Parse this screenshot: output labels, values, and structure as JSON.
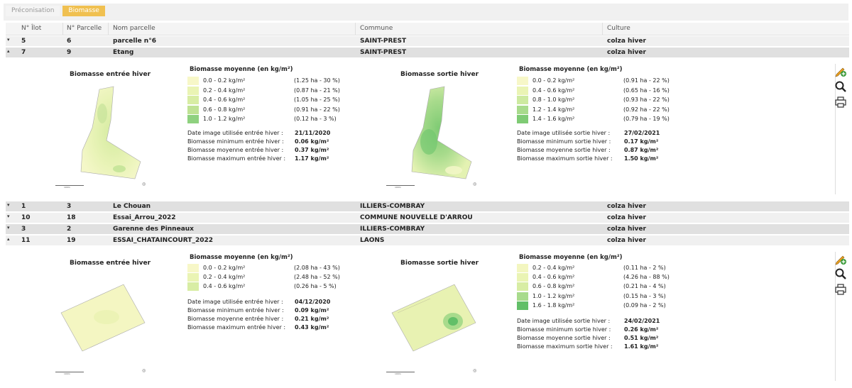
{
  "tabs": [
    {
      "label": "Préconisation"
    },
    {
      "label": "Biomasse"
    }
  ],
  "columns": {
    "ilot": "N° Îlot",
    "parcelle": "N° Parcelle",
    "nom": "Nom parcelle",
    "commune": "Commune",
    "culture": "Culture"
  },
  "rows": [
    {
      "ilot": "5",
      "parcelle": "6",
      "nom": "parcelle n°6",
      "commune": "SAINT-PREST",
      "culture": "colza hiver",
      "toggle": "▾"
    },
    {
      "ilot": "7",
      "parcelle": "9",
      "nom": "Etang",
      "commune": "SAINT-PREST",
      "culture": "colza hiver",
      "toggle": "▴"
    },
    {
      "ilot": "1",
      "parcelle": "3",
      "nom": "Le Chouan",
      "commune": "ILLIERS-COMBRAY",
      "culture": "colza hiver",
      "toggle": "▾"
    },
    {
      "ilot": "10",
      "parcelle": "18",
      "nom": "Essai_Arrou_2022",
      "commune": "COMMUNE NOUVELLE D'ARROU",
      "culture": "colza hiver",
      "toggle": "▾"
    },
    {
      "ilot": "3",
      "parcelle": "2",
      "nom": "Garenne des Pinneaux",
      "commune": "ILLIERS-COMBRAY",
      "culture": "colza hiver",
      "toggle": "▾"
    },
    {
      "ilot": "11",
      "parcelle": "19",
      "nom": "ESSAI_CHATAINCOURT_2022",
      "commune": "LAONS",
      "culture": "colza hiver",
      "toggle": "▴"
    }
  ],
  "detail1": {
    "entree": {
      "map_title": "Biomasse entrée hiver",
      "legend_title": "Biomasse moyenne (en kg/m²)",
      "legend": [
        {
          "label": "0.0 - 0.2 kg/m²",
          "pct": "(1.25 ha - 30 %)",
          "color": "#f7f7c8"
        },
        {
          "label": "0.2 - 0.4 kg/m²",
          "pct": "(0.87 ha - 21 %)",
          "color": "#eaf4b4"
        },
        {
          "label": "0.4 - 0.6 kg/m²",
          "pct": "(1.05 ha - 25 %)",
          "color": "#d8eda4"
        },
        {
          "label": "0.6 - 0.8 kg/m²",
          "pct": "(0.91 ha - 22 %)",
          "color": "#bfe294"
        },
        {
          "label": "1.0 - 1.2 kg/m²",
          "pct": "(0.12 ha - 3 %)",
          "color": "#8fd17f"
        }
      ],
      "info": [
        {
          "k": "Date image utilisée entrée hiver :",
          "v": "21/11/2020"
        },
        {
          "k": "Biomasse minimum entrée hiver :",
          "v": "0.06 kg/m²"
        },
        {
          "k": "Biomasse moyenne entrée hiver :",
          "v": "0.37 kg/m²"
        },
        {
          "k": "Biomasse maximum entrée hiver :",
          "v": "1.17 kg/m²"
        }
      ]
    },
    "sortie": {
      "map_title": "Biomasse sortie hiver",
      "legend_title": "Biomasse moyenne (en kg/m²)",
      "legend": [
        {
          "label": "0.0 - 0.2 kg/m²",
          "pct": "(0.91 ha - 22 %)",
          "color": "#f7f7c8"
        },
        {
          "label": "0.4 - 0.6 kg/m²",
          "pct": "(0.65 ha - 16 %)",
          "color": "#eaf4b4"
        },
        {
          "label": "0.8 - 1.0 kg/m²",
          "pct": "(0.93 ha - 22 %)",
          "color": "#cdeaa0"
        },
        {
          "label": "1.2 - 1.4 kg/m²",
          "pct": "(0.92 ha - 22 %)",
          "color": "#a8db8c"
        },
        {
          "label": "1.4 - 1.6 kg/m²",
          "pct": "(0.79 ha - 19 %)",
          "color": "#7fcb74"
        }
      ],
      "info": [
        {
          "k": "Date image utilisée sortie hiver :",
          "v": "27/02/2021"
        },
        {
          "k": "Biomasse minimum sortie hiver :",
          "v": "0.17 kg/m²"
        },
        {
          "k": "Biomasse moyenne sortie hiver :",
          "v": "0.87 kg/m²"
        },
        {
          "k": "Biomasse maximum sortie hiver :",
          "v": "1.50 kg/m²"
        }
      ]
    }
  },
  "detail2": {
    "entree": {
      "map_title": "Biomasse entrée hiver",
      "legend_title": "Biomasse moyenne (en kg/m²)",
      "legend": [
        {
          "label": "0.0 - 0.2 kg/m²",
          "pct": "(2.08 ha - 43 %)",
          "color": "#f7f7c8"
        },
        {
          "label": "0.2 - 0.4 kg/m²",
          "pct": "(2.48 ha - 52 %)",
          "color": "#eaf4b4"
        },
        {
          "label": "0.4 - 0.6 kg/m²",
          "pct": "(0.26 ha - 5 %)",
          "color": "#d8eda4"
        }
      ],
      "info": [
        {
          "k": "Date image utilisée entrée hiver :",
          "v": "04/12/2020"
        },
        {
          "k": "Biomasse minimum entrée hiver :",
          "v": "0.09 kg/m²"
        },
        {
          "k": "Biomasse moyenne entrée hiver :",
          "v": "0.21 kg/m²"
        },
        {
          "k": "Biomasse maximum entrée hiver :",
          "v": "0.43 kg/m²"
        }
      ]
    },
    "sortie": {
      "map_title": "Biomasse sortie hiver",
      "legend_title": "Biomasse moyenne (en kg/m²)",
      "legend": [
        {
          "label": "0.2 - 0.4 kg/m²",
          "pct": "(0.11 ha - 2 %)",
          "color": "#f3f6c0"
        },
        {
          "label": "0.4 - 0.6 kg/m²",
          "pct": "(4.26 ha - 88 %)",
          "color": "#eaf4b4"
        },
        {
          "label": "0.6 - 0.8 kg/m²",
          "pct": "(0.21 ha - 4 %)",
          "color": "#d8eda4"
        },
        {
          "label": "1.0 - 1.2 kg/m²",
          "pct": "(0.15 ha - 3 %)",
          "color": "#a8db8c"
        },
        {
          "label": "1.6 - 1.8 kg/m²",
          "pct": "(0.09 ha - 2 %)",
          "color": "#62bf68"
        }
      ],
      "info": [
        {
          "k": "Date image utilisée sortie hiver :",
          "v": "24/02/2021"
        },
        {
          "k": "Biomasse minimum sortie hiver :",
          "v": "0.26 kg/m²"
        },
        {
          "k": "Biomasse moyenne sortie hiver :",
          "v": "0.51 kg/m²"
        },
        {
          "k": "Biomasse maximum sortie hiver :",
          "v": "1.61 kg/m²"
        }
      ]
    }
  },
  "scale_label": "100m",
  "north_symbol": "◎",
  "icons": {
    "edit": "edit-add-icon",
    "zoom": "magnifier-icon",
    "print": "printer-icon"
  }
}
